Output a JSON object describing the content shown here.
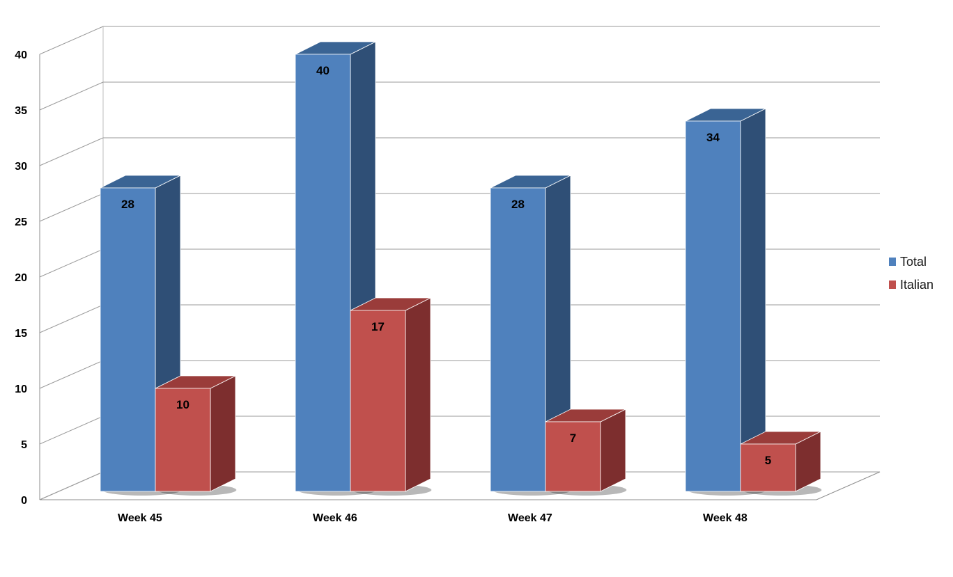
{
  "chart_data": {
    "type": "bar",
    "variant": "3d-clustered",
    "title": "",
    "xlabel": "",
    "ylabel": "",
    "categories": [
      "Week 45",
      "Week 46",
      "Week 47",
      "Week 48"
    ],
    "series": [
      {
        "name": "Total",
        "values": [
          28,
          40,
          28,
          34
        ],
        "color": "#4f81bd",
        "side_color": "#2f4f76",
        "top_color": "#3a6494"
      },
      {
        "name": "Italian",
        "values": [
          10,
          17,
          7,
          5
        ],
        "color": "#c0504d",
        "side_color": "#7d2e2e",
        "top_color": "#9a3c3a"
      }
    ],
    "ylim": [
      0,
      40
    ],
    "yticks": [
      "0",
      "5",
      "10",
      "15",
      "20",
      "25",
      "30",
      "35",
      "40"
    ],
    "grid": true,
    "data_labels": true,
    "legend": "right"
  }
}
